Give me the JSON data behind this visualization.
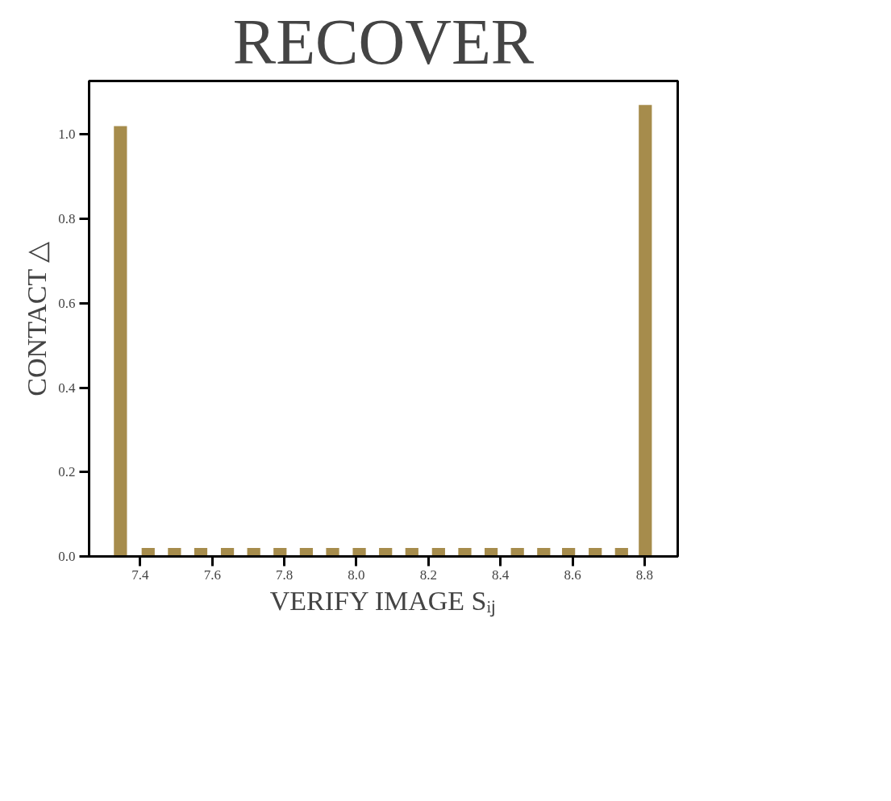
{
  "chart_data": {
    "type": "bar",
    "title": "RECOVER",
    "xlabel": "VERIFY IMAGE Sᵢⱼ",
    "ylabel": "CONTACT △",
    "x": [
      7.345,
      7.422,
      7.495,
      7.568,
      7.642,
      7.715,
      7.788,
      7.861,
      7.934,
      8.008,
      8.081,
      8.154,
      8.228,
      8.301,
      8.374,
      8.447,
      8.52,
      8.589,
      8.663,
      8.736,
      8.802
    ],
    "values": [
      1.02,
      0.02,
      0.02,
      0.02,
      0.02,
      0.02,
      0.02,
      0.02,
      0.02,
      0.02,
      0.02,
      0.02,
      0.02,
      0.02,
      0.02,
      0.02,
      0.02,
      0.02,
      0.02,
      0.02,
      1.07
    ],
    "color": "#a68c4c",
    "xlim": [
      7.258,
      8.892
    ],
    "ylim": [
      0,
      1.127
    ],
    "xticks": [
      7.4,
      7.6,
      7.8,
      {
        "value": 8.0,
        "label": "8.0"
      },
      8.2,
      8.4,
      8.6,
      8.8
    ],
    "yticks": [
      {
        "value": 0.0,
        "label": "0.0"
      },
      0.2,
      0.4,
      0.6,
      0.8,
      {
        "value": 1.0,
        "label": "1.0"
      }
    ],
    "grid": false
  }
}
